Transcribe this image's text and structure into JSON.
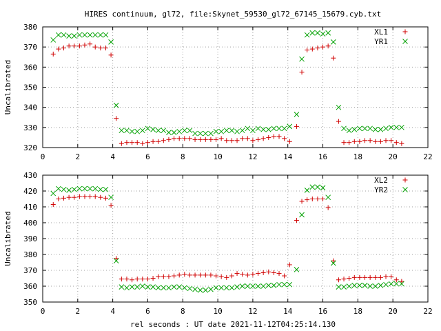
{
  "title": "HIRES continuum, gl72, file:Skynet_59530_gl72_67145_15679.cyb.txt",
  "xlabel": "rel seconds : UT date 2021-11-12T04:25:14.130",
  "chart_data": [
    {
      "type": "scatter",
      "ylabel": "Uncalibrated",
      "xlim": [
        0,
        22
      ],
      "ylim": [
        320,
        380
      ],
      "xticks": [
        0,
        2,
        4,
        6,
        8,
        10,
        12,
        14,
        16,
        18,
        20,
        22
      ],
      "yticks": [
        320,
        330,
        340,
        350,
        360,
        370,
        380
      ],
      "grid": true,
      "legend": "top-right",
      "series": [
        {
          "name": "XL1",
          "color": "#d00000",
          "marker": "plus",
          "x": [
            0.6,
            0.9,
            1.2,
            1.5,
            1.8,
            2.1,
            2.4,
            2.7,
            3.0,
            3.3,
            3.6,
            3.9,
            4.2,
            4.5,
            4.8,
            5.1,
            5.4,
            5.7,
            6.0,
            6.3,
            6.6,
            6.9,
            7.2,
            7.5,
            7.8,
            8.1,
            8.4,
            8.7,
            9.0,
            9.3,
            9.6,
            9.9,
            10.2,
            10.5,
            10.8,
            11.1,
            11.4,
            11.7,
            12.0,
            12.3,
            12.6,
            12.9,
            13.2,
            13.5,
            13.8,
            14.1,
            14.5,
            14.8,
            15.1,
            15.4,
            15.7,
            16.0,
            16.3,
            16.6,
            16.9,
            17.2,
            17.5,
            17.8,
            18.1,
            18.4,
            18.7,
            19.0,
            19.3,
            19.6,
            19.9,
            20.2,
            20.5
          ],
          "y": [
            366.5,
            369.0,
            369.5,
            370.5,
            370.5,
            370.5,
            371.0,
            371.5,
            370.0,
            369.5,
            369.5,
            366.0,
            334.5,
            322.0,
            322.5,
            322.5,
            322.5,
            322.0,
            322.5,
            323.0,
            323.0,
            323.5,
            324.0,
            324.5,
            324.5,
            324.5,
            324.5,
            324.0,
            324.0,
            324.0,
            324.0,
            324.0,
            324.5,
            323.5,
            323.5,
            323.5,
            324.5,
            324.5,
            323.5,
            324.0,
            324.5,
            325.0,
            325.5,
            325.5,
            324.5,
            323.0,
            330.5,
            357.5,
            368.5,
            369.0,
            369.5,
            370.0,
            370.5,
            364.5,
            333.0,
            322.5,
            322.5,
            323.0,
            323.0,
            323.5,
            323.5,
            323.0,
            323.0,
            323.5,
            323.5,
            322.5,
            322.0
          ]
        },
        {
          "name": "YR1",
          "color": "#00a000",
          "marker": "cross",
          "x": [
            0.6,
            0.9,
            1.2,
            1.5,
            1.8,
            2.1,
            2.4,
            2.7,
            3.0,
            3.3,
            3.6,
            3.9,
            4.2,
            4.5,
            4.8,
            5.1,
            5.4,
            5.7,
            6.0,
            6.3,
            6.6,
            6.9,
            7.2,
            7.5,
            7.8,
            8.1,
            8.4,
            8.7,
            9.0,
            9.3,
            9.6,
            9.9,
            10.2,
            10.5,
            10.8,
            11.1,
            11.4,
            11.7,
            12.0,
            12.3,
            12.6,
            12.9,
            13.2,
            13.5,
            13.8,
            14.1,
            14.5,
            14.8,
            15.1,
            15.4,
            15.7,
            16.0,
            16.3,
            16.6,
            16.9,
            17.2,
            17.5,
            17.8,
            18.1,
            18.4,
            18.7,
            19.0,
            19.3,
            19.6,
            19.9,
            20.2,
            20.5
          ],
          "y": [
            373.5,
            376.0,
            376.0,
            375.5,
            375.5,
            376.0,
            376.0,
            376.0,
            376.0,
            376.0,
            376.0,
            372.5,
            341.0,
            328.5,
            328.5,
            328.0,
            328.0,
            328.5,
            329.5,
            329.0,
            328.5,
            328.5,
            327.5,
            327.5,
            328.0,
            328.5,
            328.5,
            327.0,
            327.0,
            327.0,
            327.0,
            328.0,
            328.0,
            328.5,
            328.5,
            328.0,
            328.5,
            329.5,
            328.5,
            329.5,
            329.0,
            329.0,
            329.5,
            329.5,
            329.5,
            330.5,
            336.5,
            364.0,
            376.0,
            377.0,
            377.0,
            376.5,
            377.0,
            372.5,
            340.0,
            329.5,
            328.5,
            329.0,
            329.5,
            329.5,
            329.5,
            329.0,
            329.0,
            329.5,
            330.0,
            330.0,
            330.0
          ]
        }
      ]
    },
    {
      "type": "scatter",
      "ylabel": "Uncalibrated",
      "xlim": [
        0,
        22
      ],
      "ylim": [
        350,
        430
      ],
      "xticks": [
        0,
        2,
        4,
        6,
        8,
        10,
        12,
        14,
        16,
        18,
        20,
        22
      ],
      "yticks": [
        350,
        360,
        370,
        380,
        390,
        400,
        410,
        420,
        430
      ],
      "grid": true,
      "legend": "top-right",
      "series": [
        {
          "name": "XL2",
          "color": "#d00000",
          "marker": "plus",
          "x": [
            0.6,
            0.9,
            1.2,
            1.5,
            1.8,
            2.1,
            2.4,
            2.7,
            3.0,
            3.3,
            3.6,
            3.9,
            4.2,
            4.5,
            4.8,
            5.1,
            5.4,
            5.7,
            6.0,
            6.3,
            6.6,
            6.9,
            7.2,
            7.5,
            7.8,
            8.1,
            8.4,
            8.7,
            9.0,
            9.3,
            9.6,
            9.9,
            10.2,
            10.5,
            10.8,
            11.1,
            11.4,
            11.7,
            12.0,
            12.3,
            12.6,
            12.9,
            13.2,
            13.5,
            13.8,
            14.1,
            14.5,
            14.8,
            15.1,
            15.4,
            15.7,
            16.0,
            16.3,
            16.6,
            16.9,
            17.2,
            17.5,
            17.8,
            18.1,
            18.4,
            18.7,
            19.0,
            19.3,
            19.6,
            19.9,
            20.2,
            20.5
          ],
          "y": [
            411.5,
            415.0,
            415.5,
            416.0,
            416.0,
            416.5,
            416.5,
            416.5,
            416.5,
            416.0,
            415.5,
            411.0,
            377.5,
            364.5,
            364.5,
            364.0,
            364.5,
            364.5,
            364.5,
            365.0,
            366.0,
            366.0,
            366.0,
            366.5,
            367.0,
            367.5,
            367.0,
            367.0,
            367.0,
            367.0,
            367.0,
            366.5,
            366.0,
            365.5,
            366.5,
            368.0,
            367.5,
            367.0,
            367.5,
            368.0,
            368.5,
            369.0,
            368.5,
            368.0,
            366.5,
            373.5,
            401.5,
            413.5,
            414.5,
            415.0,
            415.0,
            415.0,
            409.5,
            376.0,
            364.0,
            364.5,
            365.0,
            365.5,
            365.5,
            365.5,
            365.5,
            365.5,
            365.5,
            366.0,
            366.0,
            364.0,
            363.0
          ]
        },
        {
          "name": "YR2",
          "color": "#00a000",
          "marker": "cross",
          "x": [
            0.6,
            0.9,
            1.2,
            1.5,
            1.8,
            2.1,
            2.4,
            2.7,
            3.0,
            3.3,
            3.6,
            3.9,
            4.2,
            4.5,
            4.8,
            5.1,
            5.4,
            5.7,
            6.0,
            6.3,
            6.6,
            6.9,
            7.2,
            7.5,
            7.8,
            8.1,
            8.4,
            8.7,
            9.0,
            9.3,
            9.6,
            9.9,
            10.2,
            10.5,
            10.8,
            11.1,
            11.4,
            11.7,
            12.0,
            12.3,
            12.6,
            12.9,
            13.2,
            13.5,
            13.8,
            14.1,
            14.5,
            14.8,
            15.1,
            15.4,
            15.7,
            16.0,
            16.3,
            16.6,
            16.9,
            17.2,
            17.5,
            17.8,
            18.1,
            18.4,
            18.7,
            19.0,
            19.3,
            19.6,
            19.9,
            20.2,
            20.5
          ],
          "y": [
            418.5,
            421.5,
            421.0,
            420.5,
            421.0,
            421.5,
            421.5,
            421.5,
            421.5,
            421.0,
            421.0,
            416.0,
            376.0,
            359.5,
            359.0,
            359.5,
            359.5,
            360.0,
            359.5,
            359.5,
            359.0,
            359.0,
            359.0,
            359.5,
            359.5,
            359.0,
            358.5,
            358.0,
            357.5,
            357.5,
            358.0,
            359.0,
            359.0,
            359.0,
            359.0,
            359.5,
            360.0,
            360.0,
            360.0,
            360.0,
            360.0,
            360.5,
            360.5,
            361.0,
            361.0,
            361.0,
            370.5,
            405.0,
            420.5,
            422.5,
            422.5,
            422.0,
            416.0,
            374.5,
            359.5,
            359.5,
            360.0,
            360.5,
            360.5,
            360.5,
            360.0,
            360.0,
            360.5,
            361.0,
            361.5,
            361.5,
            361.5
          ]
        }
      ]
    }
  ]
}
